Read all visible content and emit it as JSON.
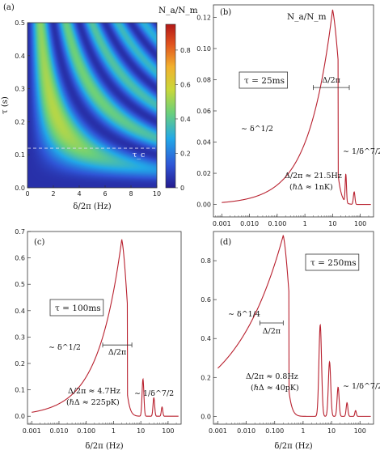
{
  "colors": {
    "curve": "#b8202e",
    "frame": "#333333"
  },
  "chart_data": [
    {
      "panel": "a",
      "type": "heatmap",
      "label": "(a)",
      "xlabel": "δ/2π (Hz)",
      "ylabel": "τ (s)",
      "xlim": [
        0,
        10
      ],
      "ylim": [
        0,
        0.5
      ],
      "xticks": [
        "0",
        "2",
        "4",
        "6",
        "8",
        "10"
      ],
      "yticks": [
        "0.0",
        "0.1",
        "0.2",
        "0.3",
        "0.4",
        "0.5"
      ],
      "colorbar_title": "N_a/N_m",
      "colorbar_ticks": [
        "0",
        "0.2",
        "0.4",
        "0.6",
        "0.8"
      ],
      "colorbar_range": [
        0,
        0.95
      ],
      "colormap": "rainbow (blue → red)",
      "hline_tau": 0.12,
      "hline_label": "τ_c",
      "peak_value": 0.93
    },
    {
      "panel": "b",
      "type": "line",
      "label": "(b)",
      "xscale": "log",
      "xlim": [
        0.0005,
        300
      ],
      "ylim": [
        -0.008,
        0.128
      ],
      "xticks": [
        "0.001",
        "0.010",
        "0.100",
        "1",
        "10",
        "100"
      ],
      "yticks": [
        "0.00",
        "0.02",
        "0.04",
        "0.06",
        "0.08",
        "0.10",
        "0.12"
      ],
      "box_text": "τ = 25ms",
      "curve_label": "N_a/N_m",
      "peak_x": 10,
      "peak_y": 0.125,
      "low_slope_label": "∼ δ^1/2",
      "high_slope_label": "∼ 1/δ^7/2",
      "bar_label": "Δ/2π",
      "bar_x": [
        2,
        40
      ],
      "bar_y": 0.075,
      "ann_line1": "Δ/2π ≈ 21.5Hz",
      "ann_line2": "(ℏΔ ≈ 1nK)"
    },
    {
      "panel": "c",
      "type": "line",
      "label": "(c)",
      "xlabel": "δ/2π (Hz)",
      "xscale": "log",
      "xlim": [
        0.0007,
        300
      ],
      "ylim": [
        -0.03,
        0.7
      ],
      "xticks": [
        "0.001",
        "0.010",
        "0.100",
        "1",
        "10",
        "100"
      ],
      "yticks": [
        "0.0",
        "0.1",
        "0.2",
        "0.3",
        "0.4",
        "0.5",
        "0.6",
        "0.7"
      ],
      "box_text": "τ = 100ms",
      "peak_x": 2,
      "peak_y": 0.67,
      "low_slope_label": "∼ δ^1/2",
      "high_slope_label": "∼ 1/δ^7/2",
      "bar_label": "Δ/2π",
      "bar_x": [
        0.4,
        4.7
      ],
      "bar_y": 0.27,
      "ann_line1": "Δ/2π ≈ 4.7Hz",
      "ann_line2": "(ℏΔ ≈ 225pK)"
    },
    {
      "panel": "d",
      "type": "line",
      "label": "(d)",
      "xlabel": "δ/2π (Hz)",
      "xscale": "log",
      "xlim": [
        0.0007,
        300
      ],
      "ylim": [
        -0.04,
        0.95
      ],
      "xticks": [
        "0.001",
        "0.010",
        "0.100",
        "1",
        "10",
        "100"
      ],
      "yticks": [
        "0.0",
        "0.2",
        "0.4",
        "0.6",
        "0.8"
      ],
      "box_text": "τ = 250ms",
      "peak_x": 0.2,
      "peak_y": 0.93,
      "low_slope_label": "∼ δ^1/4",
      "high_slope_label": "∼ 1/δ^7/2",
      "bar_label": "Δ/2π",
      "bar_x": [
        0.03,
        0.2
      ],
      "bar_y": 0.48,
      "ann_line1": "Δ/2π ≈ 0.8Hz",
      "ann_line2": "(ℏΔ ≈ 40pK)"
    }
  ]
}
